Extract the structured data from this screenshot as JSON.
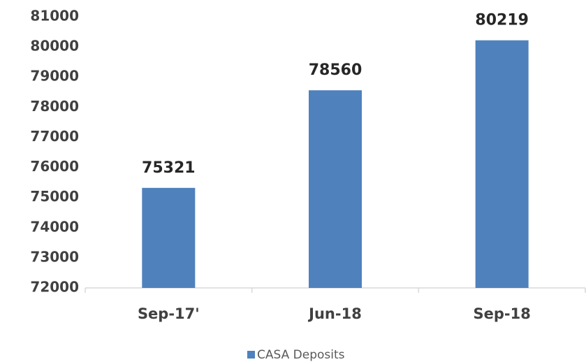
{
  "chart_data": {
    "type": "bar",
    "categories": [
      "Sep-17'",
      "Jun-18",
      "Sep-18"
    ],
    "series": [
      {
        "name": "CASA Deposits",
        "color": "#4f81bd",
        "values": [
          75321,
          78560,
          80219
        ]
      }
    ],
    "ylim": [
      72000,
      81000
    ],
    "yticks": [
      72000,
      73000,
      74000,
      75000,
      76000,
      77000,
      78000,
      79000,
      80000,
      81000
    ],
    "grid": false,
    "legend": "bottom"
  }
}
